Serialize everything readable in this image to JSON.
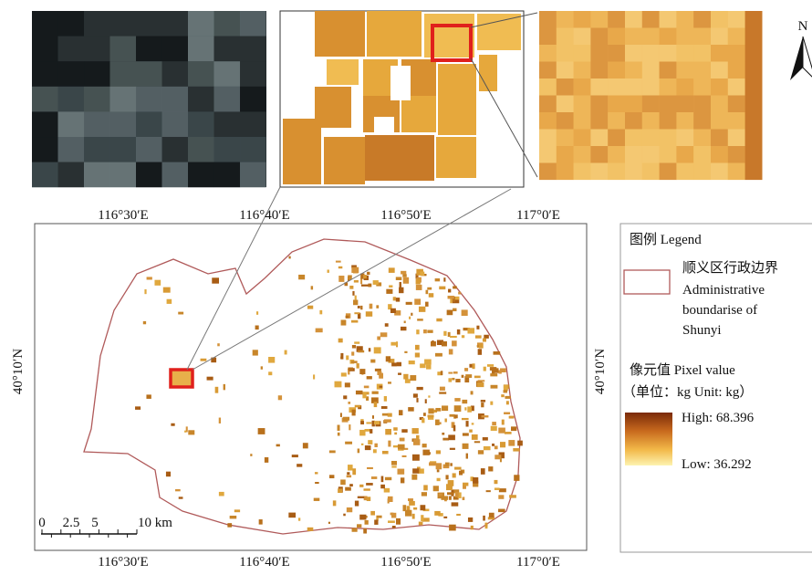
{
  "map": {
    "longitude_labels": [
      "116°30′E",
      "116°40′E",
      "116°50′E",
      "117°0′E"
    ],
    "latitude_label": "40°10′N",
    "north": "N",
    "scale_labels": [
      "0",
      "2.5",
      "5",
      "10 km"
    ]
  },
  "legend": {
    "title": "图例 Legend",
    "boundary_lines": [
      "顺义区行政边界",
      "Administrative",
      "boundarise of",
      "Shunyi"
    ],
    "pixel_title": "像元值 Pixel value",
    "pixel_unit": "（单位：kg  Unit: kg）",
    "high": "High: 68.396",
    "low": "Low: 36.292"
  }
}
